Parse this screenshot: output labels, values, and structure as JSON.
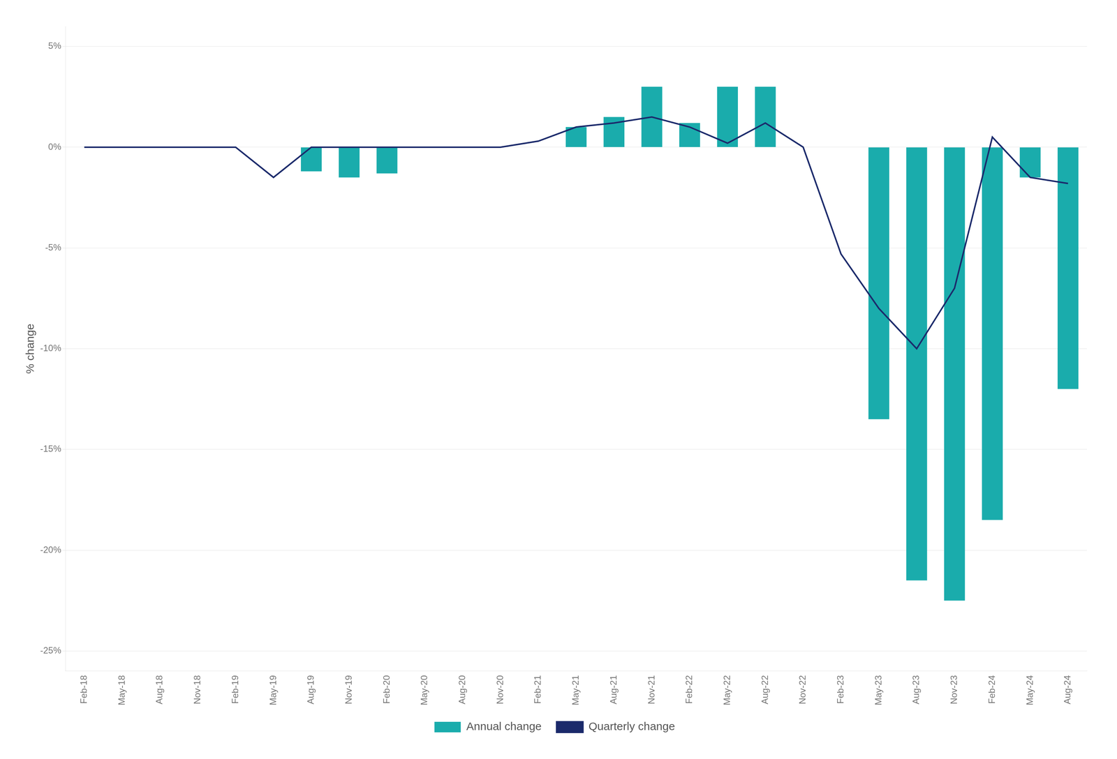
{
  "chart_data": {
    "type": "bar",
    "ylabel": "% change",
    "categories": [
      "Feb-18",
      "May-18",
      "Aug-18",
      "Nov-18",
      "Feb-19",
      "May-19",
      "Aug-19",
      "Nov-19",
      "Feb-20",
      "May-20",
      "Aug-20",
      "Nov-20",
      "Feb-21",
      "May-21",
      "Aug-21",
      "Nov-21",
      "Feb-22",
      "May-22",
      "Aug-22",
      "Nov-22",
      "Feb-23",
      "May-23",
      "Aug-23",
      "Nov-23",
      "Feb-24",
      "May-24",
      "Aug-24"
    ],
    "series": [
      {
        "name": "Annual change",
        "type": "bar",
        "color": "#1AACAC",
        "values": [
          null,
          null,
          null,
          null,
          null,
          null,
          -1.2,
          -1.5,
          -1.3,
          null,
          null,
          null,
          null,
          1.0,
          1.5,
          3.0,
          1.2,
          3.0,
          3.0,
          null,
          null,
          -13.5,
          -21.5,
          -22.5,
          -18.5,
          -1.5,
          -12.0
        ]
      },
      {
        "name": "Quarterly change",
        "type": "line",
        "color": "#1B2A6B",
        "values": [
          0.0,
          0.0,
          0.0,
          0.0,
          0.0,
          -1.5,
          0.0,
          0.0,
          0.0,
          0.0,
          0.0,
          0.0,
          0.3,
          1.0,
          1.2,
          1.5,
          1.0,
          0.2,
          1.2,
          0.0,
          -5.3,
          -8.0,
          -10.0,
          -7.0,
          0.5,
          -1.5,
          -1.8
        ]
      }
    ],
    "ylim": [
      -26,
      6
    ],
    "yticks": [
      {
        "value": 5,
        "label": "5%"
      },
      {
        "value": 0,
        "label": "0%"
      },
      {
        "value": -5,
        "label": "-5%"
      },
      {
        "value": -10,
        "label": "-10%"
      },
      {
        "value": -15,
        "label": "-15%"
      },
      {
        "value": -20,
        "label": "-20%"
      },
      {
        "value": -25,
        "label": "-25%"
      }
    ],
    "grid": true,
    "legend": "bottom"
  }
}
